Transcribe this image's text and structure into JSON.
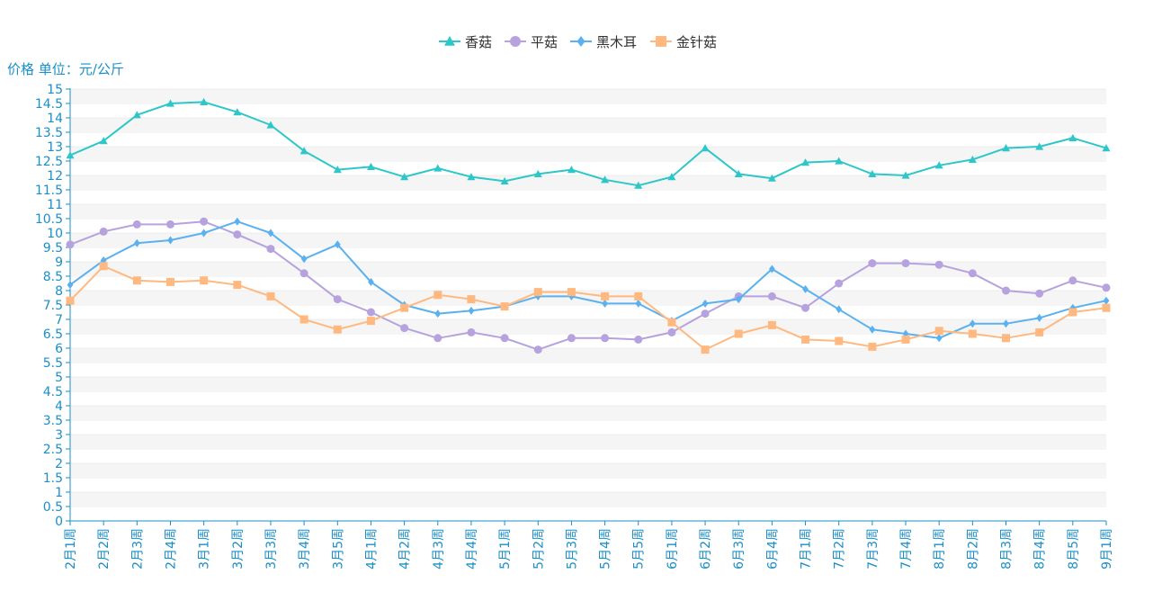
{
  "chart_data": {
    "type": "line",
    "ylabel": "价格 单位：元/公斤",
    "ylim": [
      0,
      15
    ],
    "ytick_step": 0.5,
    "grid": "horizontal-bands",
    "legend_position": "top-center",
    "categories": [
      "2月1周",
      "2月2周",
      "2月3周",
      "2月4周",
      "3月1周",
      "3月2周",
      "3月3周",
      "3月4周",
      "3月5周",
      "4月1周",
      "4月2周",
      "4月3周",
      "4月4周",
      "5月1周",
      "5月2周",
      "5月3周",
      "5月4周",
      "5月5周",
      "6月1周",
      "6月2周",
      "6月3周",
      "6月4周",
      "7月1周",
      "7月2周",
      "7月3周",
      "7月4周",
      "8月1周",
      "8月2周",
      "8月3周",
      "8月4周",
      "8月5周",
      "9月1周"
    ],
    "series": [
      {
        "name": "香菇",
        "color": "#2ec7c9",
        "marker": "triangle",
        "values": [
          12.7,
          13.2,
          14.1,
          14.5,
          14.55,
          14.2,
          13.75,
          12.85,
          12.2,
          12.3,
          11.95,
          12.25,
          11.95,
          11.8,
          12.05,
          12.2,
          11.85,
          11.65,
          11.95,
          12.95,
          12.05,
          11.9,
          12.45,
          12.5,
          12.05,
          12.0,
          12.35,
          12.55,
          12.95,
          13.0,
          13.3,
          12.95
        ]
      },
      {
        "name": "平菇",
        "color": "#b6a2de",
        "marker": "circle",
        "values": [
          9.6,
          10.05,
          10.3,
          10.3,
          10.4,
          9.95,
          9.45,
          8.6,
          7.7,
          7.25,
          6.7,
          6.35,
          6.55,
          6.35,
          5.95,
          6.35,
          6.35,
          6.3,
          6.55,
          7.2,
          7.8,
          7.8,
          7.4,
          8.25,
          8.95,
          8.95,
          8.9,
          8.6,
          8.0,
          7.9,
          8.35,
          8.1
        ]
      },
      {
        "name": "黑木耳",
        "color": "#5ab1ef",
        "marker": "diamond",
        "values": [
          8.2,
          9.05,
          9.65,
          9.75,
          10.0,
          10.4,
          10.0,
          9.1,
          9.6,
          8.3,
          7.5,
          7.2,
          7.3,
          7.45,
          7.8,
          7.8,
          7.55,
          7.55,
          6.95,
          7.55,
          7.7,
          8.75,
          8.05,
          7.35,
          6.65,
          6.5,
          6.35,
          6.85,
          6.85,
          7.05,
          7.4,
          7.65
        ]
      },
      {
        "name": "金针菇",
        "color": "#ffb980",
        "marker": "square",
        "values": [
          7.65,
          8.85,
          8.35,
          8.3,
          8.35,
          8.2,
          7.8,
          7.0,
          6.65,
          6.95,
          7.4,
          7.85,
          7.7,
          7.45,
          7.95,
          7.95,
          7.8,
          7.8,
          6.9,
          5.95,
          6.5,
          6.8,
          6.3,
          6.25,
          6.05,
          6.3,
          6.6,
          6.5,
          6.35,
          6.55,
          7.25,
          7.4
        ]
      }
    ]
  }
}
